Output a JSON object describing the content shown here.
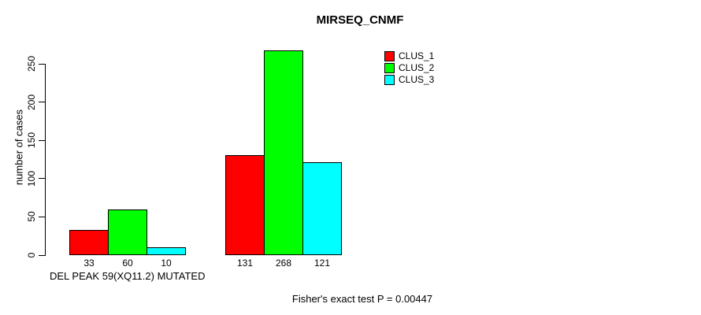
{
  "chart_data": {
    "type": "bar",
    "title": "MIRSEQ_CNMF",
    "ylabel": "number of cases",
    "xlabel": "DEL PEAK 59(XQ11.2) MUTATED",
    "annotation": "Fisher's exact test P = 0.00447",
    "categories": [
      "DEL PEAK 59(XQ11.2) MUTATED",
      ""
    ],
    "series": [
      {
        "name": "CLUS_1",
        "color": "#FF0000",
        "values": [
          33,
          131
        ]
      },
      {
        "name": "CLUS_2",
        "color": "#00FF00",
        "values": [
          60,
          268
        ]
      },
      {
        "name": "CLUS_3",
        "color": "#00FFFF",
        "values": [
          10,
          121
        ]
      }
    ],
    "bar_value_labels": [
      [
        33,
        60,
        10
      ],
      [
        131,
        268,
        121
      ]
    ],
    "yticks": [
      0,
      50,
      100,
      150,
      200,
      250
    ],
    "ylim": [
      0,
      250
    ],
    "grid": false,
    "legend_position": "top-right",
    "bar_border_color": "#000000",
    "text_color": "#000000",
    "background_color": "#FFFFFF"
  }
}
